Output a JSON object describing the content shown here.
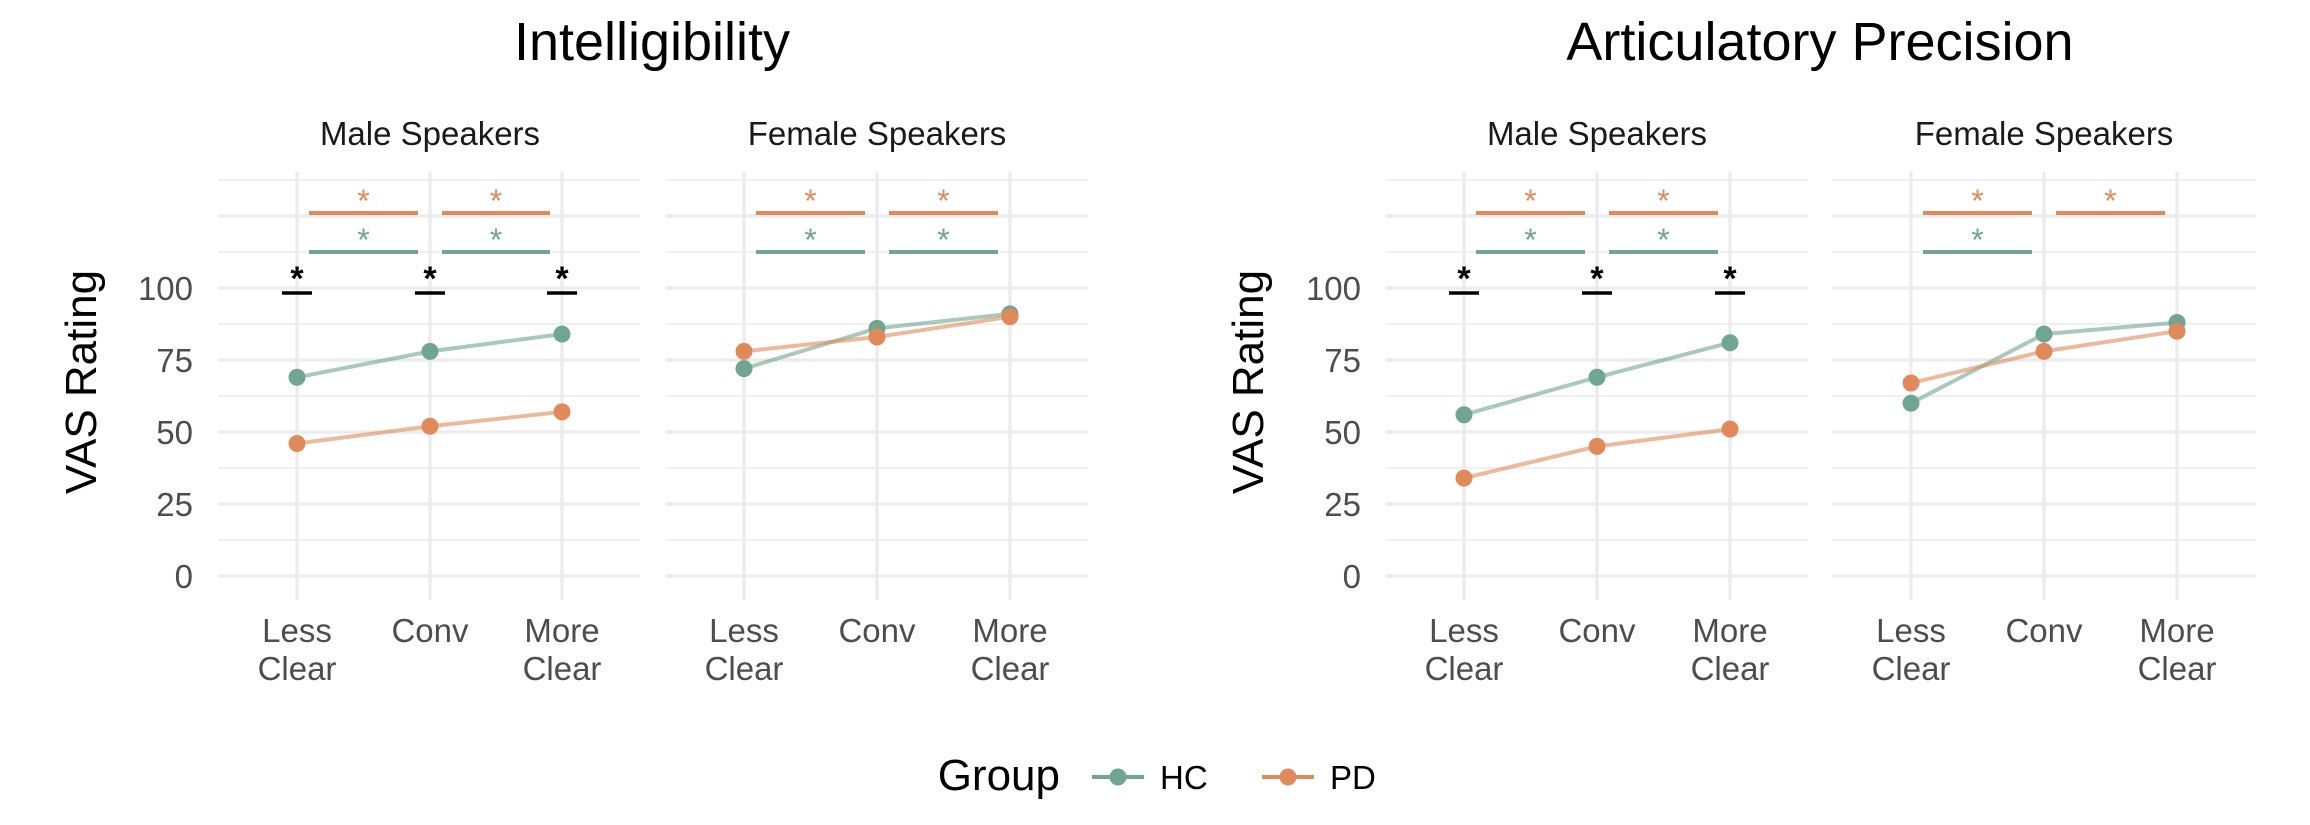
{
  "colors": {
    "HC": "#6fa591",
    "PD": "#e08a5c",
    "grid": "#ebebeb",
    "sig": "#000000"
  },
  "legend": {
    "title": "Group",
    "items": [
      {
        "label": "HC",
        "color": "#6fa591"
      },
      {
        "label": "PD",
        "color": "#e08a5c"
      }
    ]
  },
  "sig_symbol": "*",
  "chart_data": [
    {
      "type": "line",
      "title": "Intelligibility",
      "ylabel": "VAS Rating",
      "ylim": [
        0,
        100
      ],
      "yticks": [
        0,
        25,
        50,
        75,
        100
      ],
      "categories": [
        [
          "Less",
          "Clear"
        ],
        [
          "Conv"
        ],
        [
          "More",
          "Clear"
        ]
      ],
      "panels": [
        {
          "title": "Male Speakers",
          "series": [
            {
              "name": "HC",
              "values": [
                69,
                78,
                84
              ]
            },
            {
              "name": "PD",
              "values": [
                46,
                52,
                57
              ]
            }
          ],
          "between_group_sig": [
            true,
            true,
            true
          ],
          "within_group_sig": {
            "PD": [
              true,
              true
            ],
            "HC": [
              true,
              true
            ]
          }
        },
        {
          "title": "Female Speakers",
          "series": [
            {
              "name": "HC",
              "values": [
                72,
                86,
                91
              ]
            },
            {
              "name": "PD",
              "values": [
                78,
                83,
                90
              ]
            }
          ],
          "between_group_sig": [
            false,
            false,
            false
          ],
          "within_group_sig": {
            "PD": [
              true,
              true
            ],
            "HC": [
              true,
              true
            ]
          }
        }
      ]
    },
    {
      "type": "line",
      "title": "Articulatory Precision",
      "ylabel": "VAS Rating",
      "ylim": [
        0,
        100
      ],
      "yticks": [
        0,
        25,
        50,
        75,
        100
      ],
      "categories": [
        [
          "Less",
          "Clear"
        ],
        [
          "Conv"
        ],
        [
          "More",
          "Clear"
        ]
      ],
      "panels": [
        {
          "title": "Male Speakers",
          "series": [
            {
              "name": "HC",
              "values": [
                56,
                69,
                81
              ]
            },
            {
              "name": "PD",
              "values": [
                34,
                45,
                51
              ]
            }
          ],
          "between_group_sig": [
            true,
            true,
            true
          ],
          "within_group_sig": {
            "PD": [
              true,
              true
            ],
            "HC": [
              true,
              true
            ]
          }
        },
        {
          "title": "Female Speakers",
          "series": [
            {
              "name": "HC",
              "values": [
                60,
                84,
                88
              ]
            },
            {
              "name": "PD",
              "values": [
                67,
                78,
                85
              ]
            }
          ],
          "between_group_sig": [
            false,
            false,
            false
          ],
          "within_group_sig": {
            "PD": [
              true,
              true
            ],
            "HC": [
              true,
              false
            ]
          }
        }
      ]
    }
  ]
}
